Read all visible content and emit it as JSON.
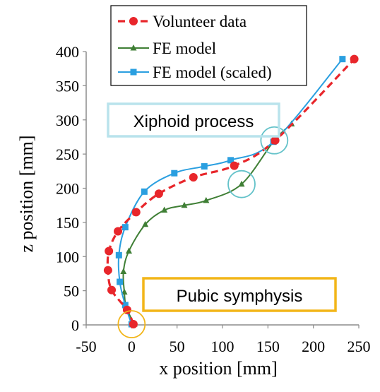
{
  "chart_data": {
    "type": "scatter",
    "xlabel": "x position [mm]",
    "ylabel": "z position [mm]",
    "xlim": [
      -50,
      250
    ],
    "ylim": [
      0,
      400
    ],
    "xticks": [
      -50,
      0,
      50,
      100,
      150,
      200,
      250
    ],
    "yticks": [
      0,
      50,
      100,
      150,
      200,
      250,
      300,
      350,
      400
    ],
    "grid": false,
    "legend_position": "top-left",
    "series": [
      {
        "name": "Volunteer data",
        "color": "#e8262b",
        "line_style": "dashed",
        "marker": "circle",
        "points": [
          [
            2,
            1
          ],
          [
            -5,
            22
          ],
          [
            -22,
            51
          ],
          [
            -26,
            80
          ],
          [
            -25,
            108
          ],
          [
            -15,
            137
          ],
          [
            5,
            165
          ],
          [
            30,
            192
          ],
          [
            68,
            216
          ],
          [
            113,
            233
          ],
          [
            158,
            270
          ],
          [
            245,
            389
          ]
        ]
      },
      {
        "name": "FE model",
        "color": "#3f7f35",
        "line_style": "solid",
        "marker": "triangle",
        "points": [
          [
            3,
            1
          ],
          [
            -6,
            26
          ],
          [
            -8,
            48
          ],
          [
            -9,
            78
          ],
          [
            -3,
            108
          ],
          [
            15,
            147
          ],
          [
            36,
            168
          ],
          [
            58,
            175
          ],
          [
            82,
            182
          ],
          [
            121,
            206
          ],
          [
            157,
            270
          ],
          [
            176,
            294
          ]
        ]
      },
      {
        "name": "FE model (scaled)",
        "color": "#2a9fe0",
        "line_style": "solid",
        "marker": "square",
        "points": [
          [
            0,
            1
          ],
          [
            -7,
            29
          ],
          [
            -13,
            63
          ],
          [
            -14,
            102
          ],
          [
            -7,
            143
          ],
          [
            14,
            195
          ],
          [
            47,
            222
          ],
          [
            80,
            232
          ],
          [
            109,
            241
          ],
          [
            156,
            268
          ],
          [
            232,
            389
          ]
        ]
      }
    ],
    "annotations": [
      {
        "text": "Xiphoid process",
        "box_color": "#b9e3ec"
      },
      {
        "text": "Pubic symphysis",
        "box_color": "#f2b518"
      }
    ],
    "highlight_circles": [
      {
        "x": 0,
        "y": 1,
        "color": "#f2b518"
      },
      {
        "x": 121,
        "y": 206,
        "color": "#63c2c9"
      },
      {
        "x": 157,
        "y": 270,
        "color": "#63c2c9"
      }
    ]
  }
}
